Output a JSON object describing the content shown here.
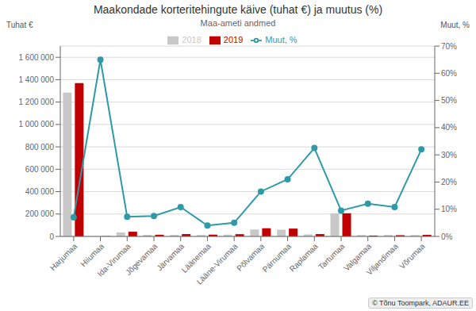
{
  "chart_data": {
    "type": "bar",
    "title": "Maakondade korteritehingute käive (tuhat €) ja muutus (%)",
    "subtitle": "Maa-ameti andmed",
    "ylabel": "Tuhat €",
    "y2label": "Muut, %",
    "annotations": [
      "© Tõnu Toompark, ADAUR.EE"
    ],
    "categories": [
      "Harjumaa",
      "Hiiumaa",
      "Ida-Virumaa",
      "Jõgevamaa",
      "Järvamaa",
      "Läänemaa",
      "Lääne-Virumaa",
      "Põlvamaa",
      "Pärnumaa",
      "Raplamaa",
      "Tartumaa",
      "Valgamaa",
      "Viljandimaa",
      "Võrumaa"
    ],
    "series": [
      {
        "name": "2018",
        "color": "#c8c8c8",
        "values": [
          1285000,
          1500,
          36000,
          14000,
          13500,
          13000,
          16000,
          62000,
          60000,
          18000,
          207000,
          13000,
          13500,
          13000
        ]
      },
      {
        "name": "2019",
        "color": "#c00000",
        "values": [
          1370000,
          2500,
          42000,
          15000,
          21000,
          16000,
          20000,
          73000,
          70000,
          21000,
          207000,
          8000,
          11000,
          14000
        ]
      },
      {
        "name": "Muut, %",
        "type": "line",
        "axis": "y2",
        "color": "#2e9aa8",
        "marker": "circle",
        "values": [
          7.0,
          65.0,
          7.2,
          7.5,
          10.8,
          4.0,
          5.0,
          16.5,
          21.0,
          32.5,
          9.5,
          12.0,
          10.8,
          32.0
        ]
      }
    ],
    "ylim": [
      0,
      1700000
    ],
    "yticks": [
      0,
      {
        "value": 200000,
        "label": "200 000"
      },
      {
        "value": 400000,
        "label": "400 000"
      },
      {
        "value": 600000,
        "label": "600 000"
      },
      {
        "value": 800000,
        "label": "800 000"
      },
      {
        "value": 1000000,
        "label": "1 000 000"
      },
      {
        "value": 1200000,
        "label": "1 200 000"
      },
      {
        "value": 1400000,
        "label": "1 400 000"
      },
      {
        "value": 1600000,
        "label": "1 600 000"
      }
    ],
    "y2lim": [
      0,
      70
    ],
    "y2ticks": [
      {
        "value": 0,
        "label": "0%"
      },
      {
        "value": 10,
        "label": "10%"
      },
      {
        "value": 20,
        "label": "20%"
      },
      {
        "value": 30,
        "label": "30%"
      },
      {
        "value": 40,
        "label": "40%"
      },
      {
        "value": 50,
        "label": "50%"
      },
      {
        "value": 60,
        "label": "60%"
      },
      {
        "value": 70,
        "label": "70%"
      }
    ],
    "grid": true,
    "legend": "top"
  }
}
